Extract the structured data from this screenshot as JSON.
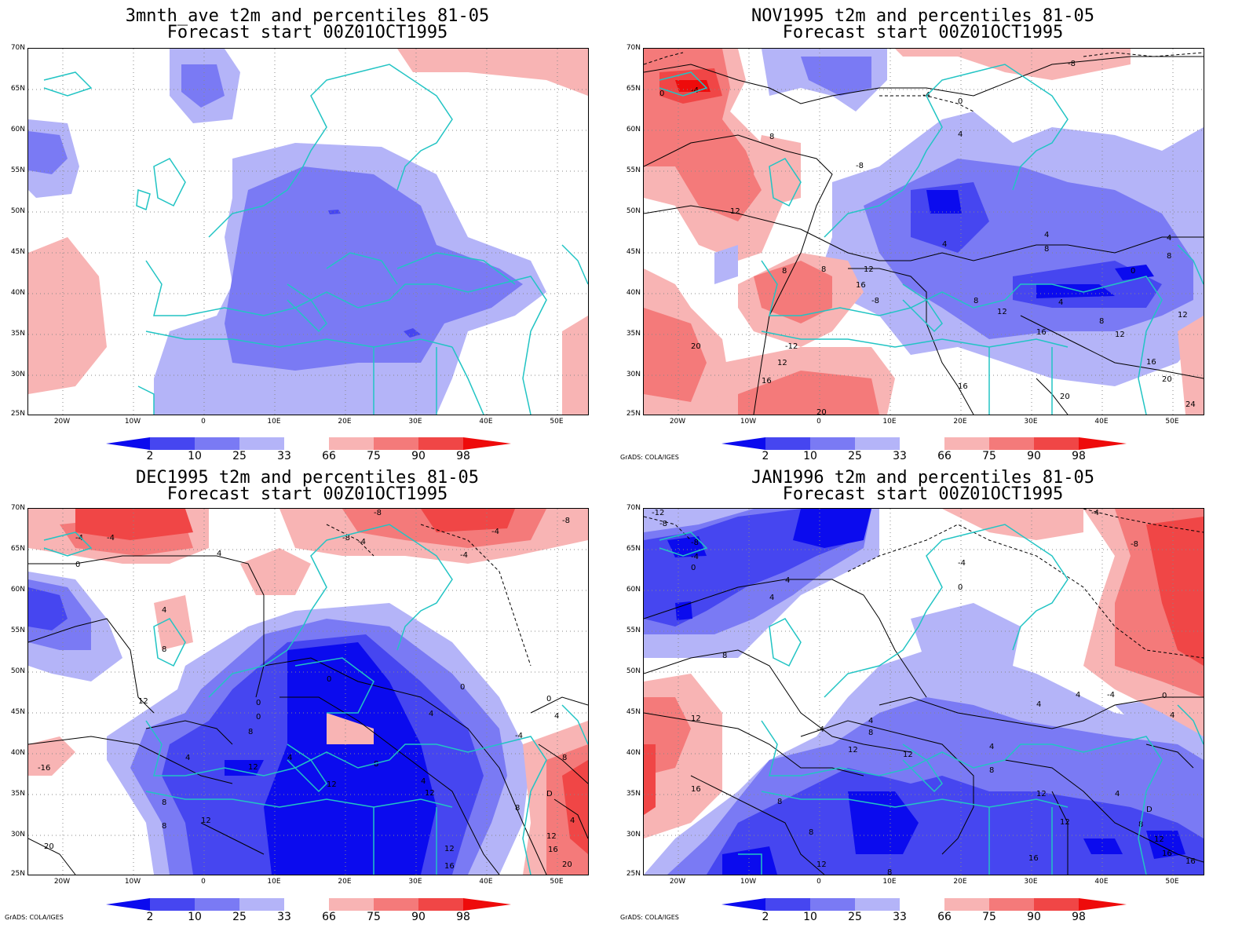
{
  "credit": "GrADS: COLA/IGES",
  "colors": {
    "p2": "#0b0bee",
    "p10": "#4646f0",
    "p25": "#7a7af4",
    "p33": "#b4b4f8",
    "p66": "#f8b4b4",
    "p75": "#f47a7a",
    "p90": "#f04646",
    "p98": "#ee0b0b",
    "coast": "#22c4c4",
    "contour": "#000000"
  },
  "lat_labels": [
    "70N",
    "65N",
    "60N",
    "55N",
    "50N",
    "45N",
    "40N",
    "35N",
    "30N",
    "25N"
  ],
  "lon_labels": [
    "20W",
    "10W",
    "0",
    "10E",
    "20E",
    "30E",
    "40E",
    "50E"
  ],
  "colorbar_labels": [
    "2",
    "10",
    "25",
    "33",
    "66",
    "75",
    "90",
    "98"
  ],
  "panels": [
    {
      "title_line1": "3mnth_ave t2m and percentiles 81-05",
      "title_line2": "Forecast start 00Z01OCT1995",
      "show_credit": false
    },
    {
      "title_line1": "NOV1995 t2m and percentiles 81-05",
      "title_line2": "Forecast start 00Z01OCT1995",
      "show_credit": true
    },
    {
      "title_line1": "DEC1995 t2m and percentiles 81-05",
      "title_line2": "Forecast start 00Z01OCT1995",
      "show_credit": true
    },
    {
      "title_line1": "JAN1996 t2m and percentiles 81-05",
      "title_line2": "Forecast start 00Z01OCT1995",
      "show_credit": true
    }
  ]
}
